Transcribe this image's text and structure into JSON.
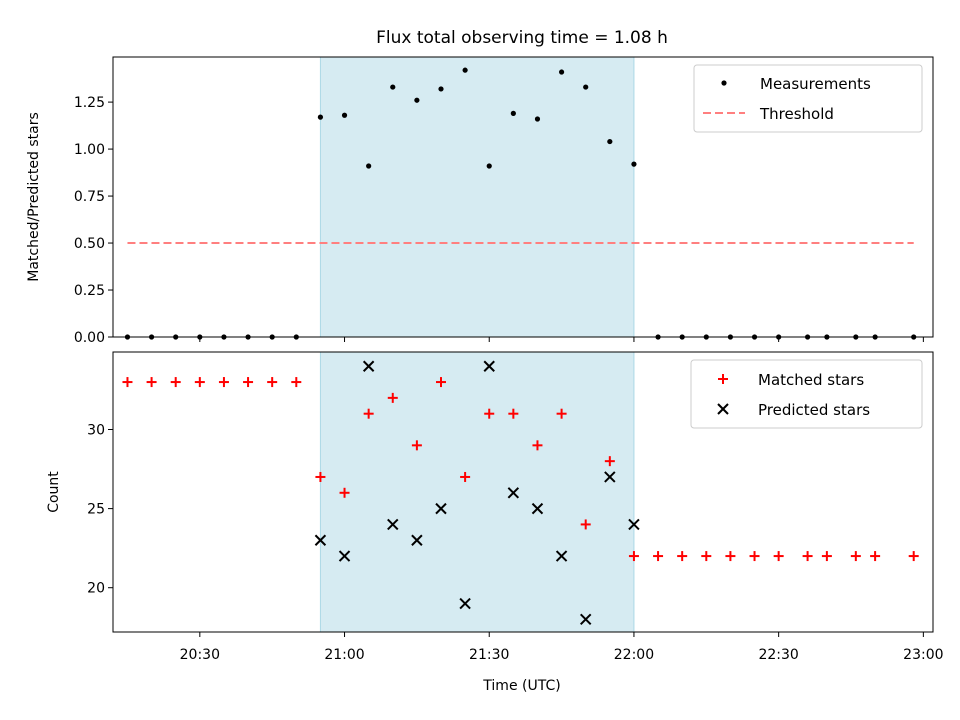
{
  "title": "Flux total observing time = 1.08 h",
  "colors": {
    "shade": "#add8e6",
    "threshold": "#ff7f7f",
    "matched": "#ff0000",
    "predicted": "#000000",
    "measurement": "#000000"
  },
  "chart_data": [
    {
      "type": "scatter",
      "ylabel": "Matched/Predicted stars",
      "ylim": [
        0,
        1.49
      ],
      "yticks": [
        0.0,
        0.25,
        0.5,
        0.75,
        1.0,
        1.25
      ],
      "ytick_labels": [
        "0.00",
        "0.25",
        "0.50",
        "0.75",
        "1.00",
        "1.25"
      ],
      "x_minutes": [
        "20:15",
        "20:20",
        "20:25",
        "20:30",
        "20:35",
        "20:40",
        "20:45",
        "20:50",
        "20:55",
        "21:00",
        "21:05",
        "21:10",
        "21:15",
        "21:20",
        "21:25",
        "21:30",
        "21:35",
        "21:40",
        "21:45",
        "21:50",
        "21:55",
        "22:00",
        "22:05",
        "22:10",
        "22:15",
        "22:20",
        "22:25",
        "22:30",
        "22:36",
        "22:40",
        "22:46",
        "22:50",
        "22:58"
      ],
      "series": [
        {
          "name": "Measurements",
          "values": [
            0,
            0,
            0,
            0,
            0,
            0,
            0,
            0,
            1.17,
            1.18,
            0.91,
            1.33,
            1.26,
            1.32,
            1.42,
            0.91,
            1.19,
            1.16,
            1.41,
            1.33,
            1.04,
            0.92,
            0,
            0,
            0,
            0,
            0,
            0,
            0,
            0,
            0,
            0,
            0
          ]
        }
      ],
      "threshold": {
        "name": "Threshold",
        "value": 0.5,
        "x_start": "20:15",
        "x_end": "22:58"
      },
      "shaded_interval": [
        "20:55",
        "22:00"
      ],
      "legend": "top-right"
    },
    {
      "type": "scatter",
      "xlabel": "Time (UTC)",
      "ylabel": "Count",
      "ylim": [
        17.2,
        34.9
      ],
      "yticks": [
        20,
        25,
        30
      ],
      "xticks": [
        "20:30",
        "21:00",
        "21:30",
        "22:00",
        "22:30",
        "23:00"
      ],
      "xlim": [
        "20:12",
        "23:02"
      ],
      "series": [
        {
          "name": "Matched stars",
          "x": [
            "20:15",
            "20:20",
            "20:25",
            "20:30",
            "20:35",
            "20:40",
            "20:45",
            "20:50",
            "20:55",
            "21:00",
            "21:05",
            "21:10",
            "21:15",
            "21:20",
            "21:25",
            "21:30",
            "21:35",
            "21:40",
            "21:45",
            "21:50",
            "21:55",
            "22:00",
            "22:05",
            "22:10",
            "22:15",
            "22:20",
            "22:25",
            "22:30",
            "22:36",
            "22:40",
            "22:46",
            "22:50",
            "22:58"
          ],
          "values": [
            33,
            33,
            33,
            33,
            33,
            33,
            33,
            33,
            27,
            26,
            31,
            32,
            29,
            33,
            27,
            31,
            31,
            29,
            31,
            24,
            28,
            22,
            22,
            22,
            22,
            22,
            22,
            22,
            22,
            22,
            22,
            22,
            22
          ]
        },
        {
          "name": "Predicted stars",
          "x": [
            "20:55",
            "21:00",
            "21:05",
            "21:10",
            "21:15",
            "21:20",
            "21:25",
            "21:30",
            "21:35",
            "21:40",
            "21:45",
            "21:50",
            "21:55",
            "22:00"
          ],
          "values": [
            23,
            22,
            34,
            24,
            23,
            25,
            19,
            34,
            26,
            25,
            22,
            18,
            27,
            24
          ]
        }
      ],
      "shaded_interval": [
        "20:55",
        "22:00"
      ],
      "legend": "top-right"
    }
  ]
}
